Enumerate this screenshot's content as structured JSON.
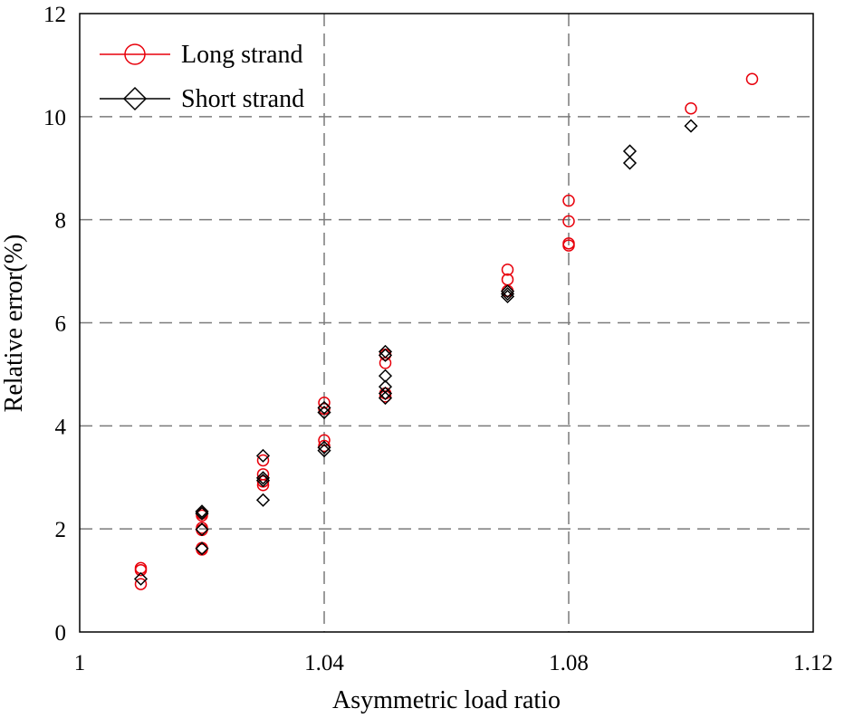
{
  "chart_data": {
    "type": "scatter",
    "xlabel": "Asymmetric load ratio",
    "ylabel": "Relative error(%)",
    "xlim": [
      1,
      1.12
    ],
    "ylim": [
      0,
      12
    ],
    "x_ticks": [
      1,
      1.04,
      1.08,
      1.12
    ],
    "x_tick_labels": [
      "1",
      "1.04",
      "1.08",
      "1.12"
    ],
    "y_ticks": [
      0,
      2,
      4,
      6,
      8,
      10,
      12
    ],
    "y_tick_labels": [
      "0",
      "2",
      "4",
      "6",
      "8",
      "10",
      "12"
    ],
    "grid": true,
    "grid_style": "dashed",
    "legend_position": "top-left",
    "series": [
      {
        "name": "Long strand",
        "marker": "circle",
        "color": "#e8000b",
        "points": [
          [
            1.01,
            0.93
          ],
          [
            1.01,
            1.2
          ],
          [
            1.01,
            1.24
          ],
          [
            1.02,
            1.6
          ],
          [
            1.02,
            1.63
          ],
          [
            1.02,
            1.98
          ],
          [
            1.02,
            2.02
          ],
          [
            1.02,
            2.26
          ],
          [
            1.02,
            2.3
          ],
          [
            1.03,
            2.85
          ],
          [
            1.03,
            2.92
          ],
          [
            1.03,
            3.06
          ],
          [
            1.03,
            3.33
          ],
          [
            1.04,
            3.61
          ],
          [
            1.04,
            3.72
          ],
          [
            1.04,
            4.33
          ],
          [
            1.04,
            4.45
          ],
          [
            1.05,
            4.57
          ],
          [
            1.05,
            4.63
          ],
          [
            1.05,
            5.22
          ],
          [
            1.05,
            5.38
          ],
          [
            1.07,
            6.62
          ],
          [
            1.07,
            6.84
          ],
          [
            1.07,
            7.03
          ],
          [
            1.08,
            7.5
          ],
          [
            1.08,
            7.54
          ],
          [
            1.08,
            7.97
          ],
          [
            1.08,
            8.37
          ],
          [
            1.1,
            10.16
          ],
          [
            1.11,
            10.73
          ]
        ]
      },
      {
        "name": "Short strand",
        "marker": "diamond",
        "color": "#000000",
        "points": [
          [
            1.01,
            1.03
          ],
          [
            1.02,
            1.62
          ],
          [
            1.02,
            1.99
          ],
          [
            1.02,
            2.3
          ],
          [
            1.02,
            2.34
          ],
          [
            1.03,
            2.56
          ],
          [
            1.03,
            2.94
          ],
          [
            1.03,
            2.99
          ],
          [
            1.03,
            3.42
          ],
          [
            1.04,
            3.52
          ],
          [
            1.04,
            3.58
          ],
          [
            1.04,
            4.26
          ],
          [
            1.04,
            4.35
          ],
          [
            1.05,
            4.54
          ],
          [
            1.05,
            4.63
          ],
          [
            1.05,
            4.76
          ],
          [
            1.05,
            4.97
          ],
          [
            1.05,
            5.37
          ],
          [
            1.05,
            5.44
          ],
          [
            1.07,
            6.51
          ],
          [
            1.07,
            6.56
          ],
          [
            1.07,
            6.61
          ],
          [
            1.09,
            9.1
          ],
          [
            1.09,
            9.33
          ],
          [
            1.1,
            9.82
          ]
        ]
      }
    ]
  }
}
